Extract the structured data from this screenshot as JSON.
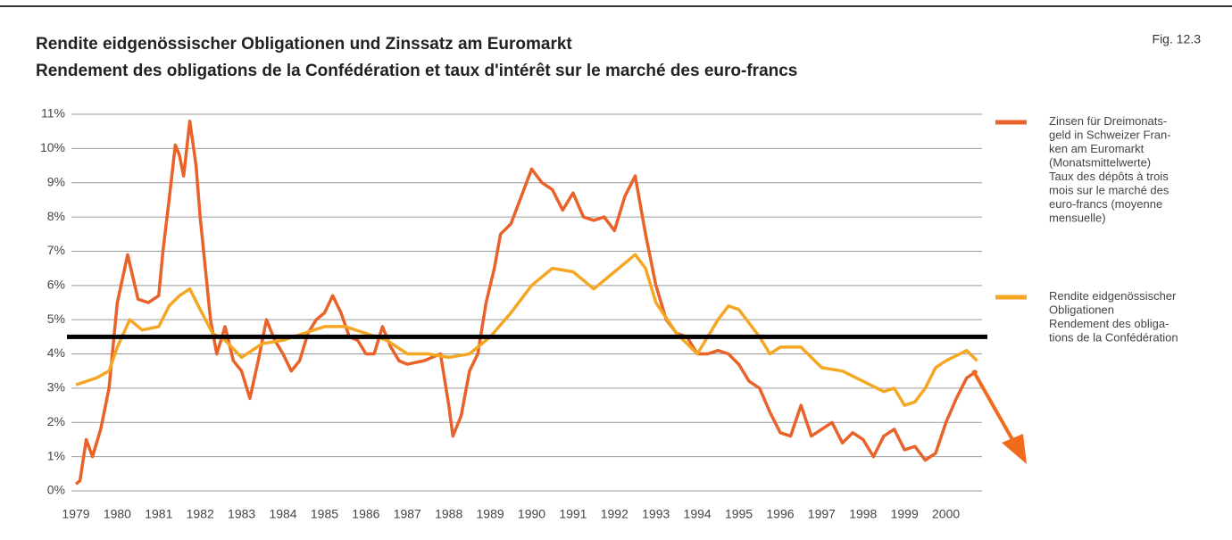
{
  "chart_data": {
    "type": "line",
    "title": "Rendite eidgenössischer Obligationen und Zinssatz am Euromarkt",
    "subtitle": "Rendement des obligations de la Confédération et taux d'intérêt sur le marché des euro-francs",
    "figure_label": "Fig. 12.3",
    "xlim": [
      1979,
      2001
    ],
    "xticks": [
      1979,
      1980,
      1981,
      1982,
      1983,
      1984,
      1985,
      1986,
      1987,
      1988,
      1989,
      1990,
      1991,
      1992,
      1993,
      1994,
      1995,
      1996,
      1997,
      1998,
      1999,
      2000
    ],
    "ylim": [
      0,
      11
    ],
    "yticks": [
      {
        "value": 0,
        "label": "0%"
      },
      {
        "value": 1,
        "label": "1%"
      },
      {
        "value": 2,
        "label": "2%"
      },
      {
        "value": 3,
        "label": "3%"
      },
      {
        "value": 4,
        "label": "4%"
      },
      {
        "value": 5,
        "label": "5%"
      },
      {
        "value": 6,
        "label": "6%"
      },
      {
        "value": 7,
        "label": "7%"
      },
      {
        "value": 8,
        "label": "8%"
      },
      {
        "value": 9,
        "label": "9%"
      },
      {
        "value": 10,
        "label": "10%"
      },
      {
        "value": 11,
        "label": "11%"
      }
    ],
    "grid": true,
    "reference_line": {
      "value": 4.5,
      "color": "#000000"
    },
    "series": [
      {
        "name": "Zinsen für Dreimonats-\ngeld in Schweizer Fran-\nken am Euromarkt\n(Monatsmittelwerte)\nTaux des dépôts à trois\nmois sur le marché des\neuro-francs (moyenne\nmensuelle)",
        "color": "#e8622a",
        "x": [
          1979.0,
          1979.1,
          1979.25,
          1979.4,
          1979.6,
          1979.8,
          1980.0,
          1980.25,
          1980.5,
          1980.75,
          1981.0,
          1981.1,
          1981.25,
          1981.4,
          1981.5,
          1981.6,
          1981.75,
          1981.9,
          1982.0,
          1982.25,
          1982.4,
          1982.6,
          1982.8,
          1983.0,
          1983.2,
          1983.4,
          1983.6,
          1983.8,
          1984.0,
          1984.2,
          1984.4,
          1984.6,
          1984.8,
          1985.0,
          1985.2,
          1985.4,
          1985.6,
          1985.8,
          1986.0,
          1986.2,
          1986.4,
          1986.6,
          1986.8,
          1987.0,
          1987.4,
          1987.8,
          1988.0,
          1988.1,
          1988.3,
          1988.5,
          1988.7,
          1988.9,
          1989.1,
          1989.25,
          1989.5,
          1989.75,
          1990.0,
          1990.25,
          1990.5,
          1990.75,
          1991.0,
          1991.25,
          1991.5,
          1991.75,
          1992.0,
          1992.25,
          1992.5,
          1992.75,
          1993.0,
          1993.25,
          1993.5,
          1993.75,
          1994.0,
          1994.25,
          1994.5,
          1994.75,
          1995.0,
          1995.25,
          1995.5,
          1995.75,
          1996.0,
          1996.25,
          1996.5,
          1996.75,
          1997.0,
          1997.25,
          1997.5,
          1997.75,
          1998.0,
          1998.25,
          1998.5,
          1998.75,
          1999.0,
          1999.25,
          1999.5,
          1999.75,
          2000.0,
          2000.25,
          2000.5,
          2000.75
        ],
        "values": [
          0.2,
          0.3,
          1.5,
          1.0,
          1.8,
          3.0,
          5.5,
          6.9,
          5.6,
          5.5,
          5.7,
          7.0,
          8.5,
          10.1,
          9.8,
          9.2,
          10.8,
          9.5,
          8.0,
          5.0,
          4.0,
          4.8,
          3.8,
          3.5,
          2.7,
          3.8,
          5.0,
          4.4,
          4.0,
          3.5,
          3.8,
          4.6,
          5.0,
          5.2,
          5.7,
          5.2,
          4.5,
          4.4,
          4.0,
          4.0,
          4.8,
          4.2,
          3.8,
          3.7,
          3.8,
          4.0,
          2.5,
          1.6,
          2.2,
          3.5,
          4.0,
          5.5,
          6.5,
          7.5,
          7.8,
          8.6,
          9.4,
          9.0,
          8.8,
          8.2,
          8.7,
          8.0,
          7.9,
          8.0,
          7.6,
          8.6,
          9.2,
          7.5,
          6.0,
          5.0,
          4.6,
          4.5,
          4.0,
          4.0,
          4.1,
          4.0,
          3.7,
          3.2,
          3.0,
          2.3,
          1.7,
          1.6,
          2.5,
          1.6,
          1.8,
          2.0,
          1.4,
          1.7,
          1.5,
          1.0,
          1.6,
          1.8,
          1.2,
          1.3,
          0.9,
          1.1,
          2.0,
          2.7,
          3.3,
          3.5
        ]
      },
      {
        "name": "Rendite eidgenössischer\nObligationen\nRendement des obliga-\ntions de la Confédération",
        "color": "#f5a623",
        "x": [
          1979.0,
          1979.5,
          1979.8,
          1980.0,
          1980.3,
          1980.6,
          1981.0,
          1981.25,
          1981.5,
          1981.75,
          1982.0,
          1982.3,
          1982.6,
          1983.0,
          1983.5,
          1984.0,
          1984.5,
          1985.0,
          1985.5,
          1986.0,
          1986.5,
          1987.0,
          1987.5,
          1988.0,
          1988.5,
          1989.0,
          1989.5,
          1990.0,
          1990.5,
          1991.0,
          1991.5,
          1992.0,
          1992.5,
          1992.75,
          1993.0,
          1993.5,
          1994.0,
          1994.5,
          1994.75,
          1995.0,
          1995.5,
          1995.75,
          1996.0,
          1996.5,
          1997.0,
          1997.5,
          1998.0,
          1998.5,
          1998.75,
          1999.0,
          1999.25,
          1999.5,
          1999.75,
          2000.0,
          2000.5,
          2000.75
        ],
        "values": [
          3.1,
          3.3,
          3.5,
          4.2,
          5.0,
          4.7,
          4.8,
          5.4,
          5.7,
          5.9,
          5.3,
          4.6,
          4.4,
          3.9,
          4.3,
          4.4,
          4.6,
          4.8,
          4.8,
          4.6,
          4.4,
          4.0,
          4.0,
          3.9,
          4.0,
          4.5,
          5.2,
          6.0,
          6.5,
          6.4,
          5.9,
          6.4,
          6.9,
          6.5,
          5.5,
          4.6,
          4.0,
          5.0,
          5.4,
          5.3,
          4.5,
          4.0,
          4.2,
          4.2,
          3.6,
          3.5,
          3.2,
          2.9,
          3.0,
          2.5,
          2.6,
          3.0,
          3.6,
          3.8,
          4.1,
          3.8
        ]
      }
    ]
  }
}
